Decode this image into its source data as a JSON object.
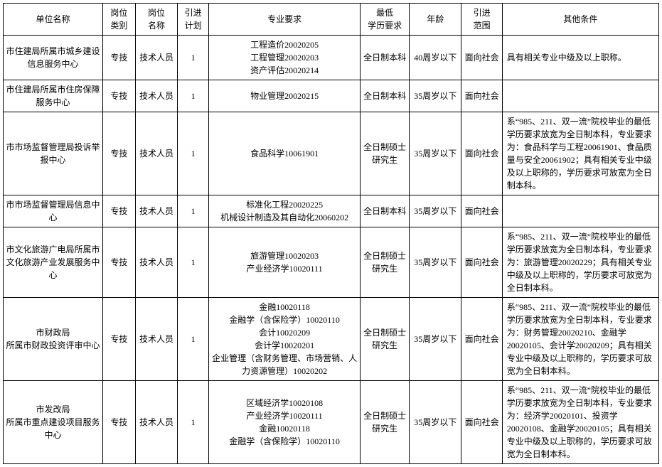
{
  "headers": {
    "unit": "单位名称",
    "category": "岗位\n类别",
    "position": "岗位\n名称",
    "plan": "引进\n计划",
    "major": "专业要求",
    "edu": "最低\n学历要求",
    "age": "年龄",
    "scope": "引进\n范围",
    "other": "其他条件"
  },
  "rows": [
    {
      "unit": "市住建局所属市城乡建设信息服务中心",
      "category": "专技",
      "position": "技术人员",
      "plan": "1",
      "major": "工程造价20020205\n工程管理20020203\n资产评估20020214",
      "edu": "全日制本科",
      "age": "40周岁以下",
      "scope": "面向社会",
      "other": "具有相关专业中级及以上职称。"
    },
    {
      "unit": "市住建局所属市住房保障服务中心",
      "category": "专技",
      "position": "技术人员",
      "plan": "1",
      "major": "物业管理20020215",
      "edu": "全日制本科",
      "age": "35周岁以下",
      "scope": "面向社会",
      "other": ""
    },
    {
      "unit": "市市场监督管理局投诉举报中心",
      "category": "专技",
      "position": "技术人员",
      "plan": "1",
      "major": "食品科学10061901",
      "edu": "全日制硕士研究生",
      "age": "35周岁以下",
      "scope": "面向社会",
      "other": "系“985、211、双一流”院校毕业的最低学历要求放宽为全日制本科，专业要求为：食品科学与工程20061901、食品质量与安全20061902；具有相关专业中级及以上职称的，学历要求可放宽为全日制本科。"
    },
    {
      "unit": "市市场监督管理局信息中心",
      "category": "专技",
      "position": "技术人员",
      "plan": "1",
      "major": "标准化工程20020225\n机械设计制造及其自动化20060202",
      "edu": "全日制本科",
      "age": "35周岁以下",
      "scope": "面向社会",
      "other": ""
    },
    {
      "unit": "市文化旅游广电局所属市文化旅游产业发展服务中心",
      "category": "专技",
      "position": "技术人员",
      "plan": "1",
      "major": "旅游管理10020203\n产业经济学10020111",
      "edu": "全日制硕士研究生",
      "age": "35周岁以下",
      "scope": "面向社会",
      "other": "系“985、211、双一流”院校毕业的最低学历要求放宽为全日制本科，专业要求为：旅游管理20020229；具有相关专业中级及以上职称的，学历要求可放宽为全日制本科。"
    },
    {
      "unit": "市财政局\n所属市财政投资评审中心",
      "category": "专技",
      "position": "技术人员",
      "plan": "1",
      "major": "金融10020118\n金融学（含保险学）10020110\n会计10020209\n会计学10020201\n企业管理（含财务管理、市场营销、人力资源管理）10020202",
      "edu": "全日制硕士研究生",
      "age": "35周岁以下",
      "scope": "面向社会",
      "other": "系“985、211、双一流”院校毕业的最低学历要求放宽为全日制本科，专业要求为：财务管理20020210、金融学20020105、会计学20020209；具有相关专业中级及以上职称的，学历要求可放宽为全日制本科。"
    },
    {
      "unit": "市发改局\n所属市重点建设项目服务中心",
      "category": "专技",
      "position": "技术人员",
      "plan": "1",
      "major": "区域经济学10020108\n产业经济学10020111\n金融10020118\n金融学（含保险学）10020110",
      "edu": "全日制硕士研究生",
      "age": "35周岁以下",
      "scope": "面向社会",
      "other": "系“985、211、双一流”院校毕业的最低学历要求放宽为全日制本科，专业要求为：经济学20020101、投资学20020108、金融学20020105；具有相关专业中级及以上职称的，学历要求可放宽为全日制本科。"
    }
  ]
}
